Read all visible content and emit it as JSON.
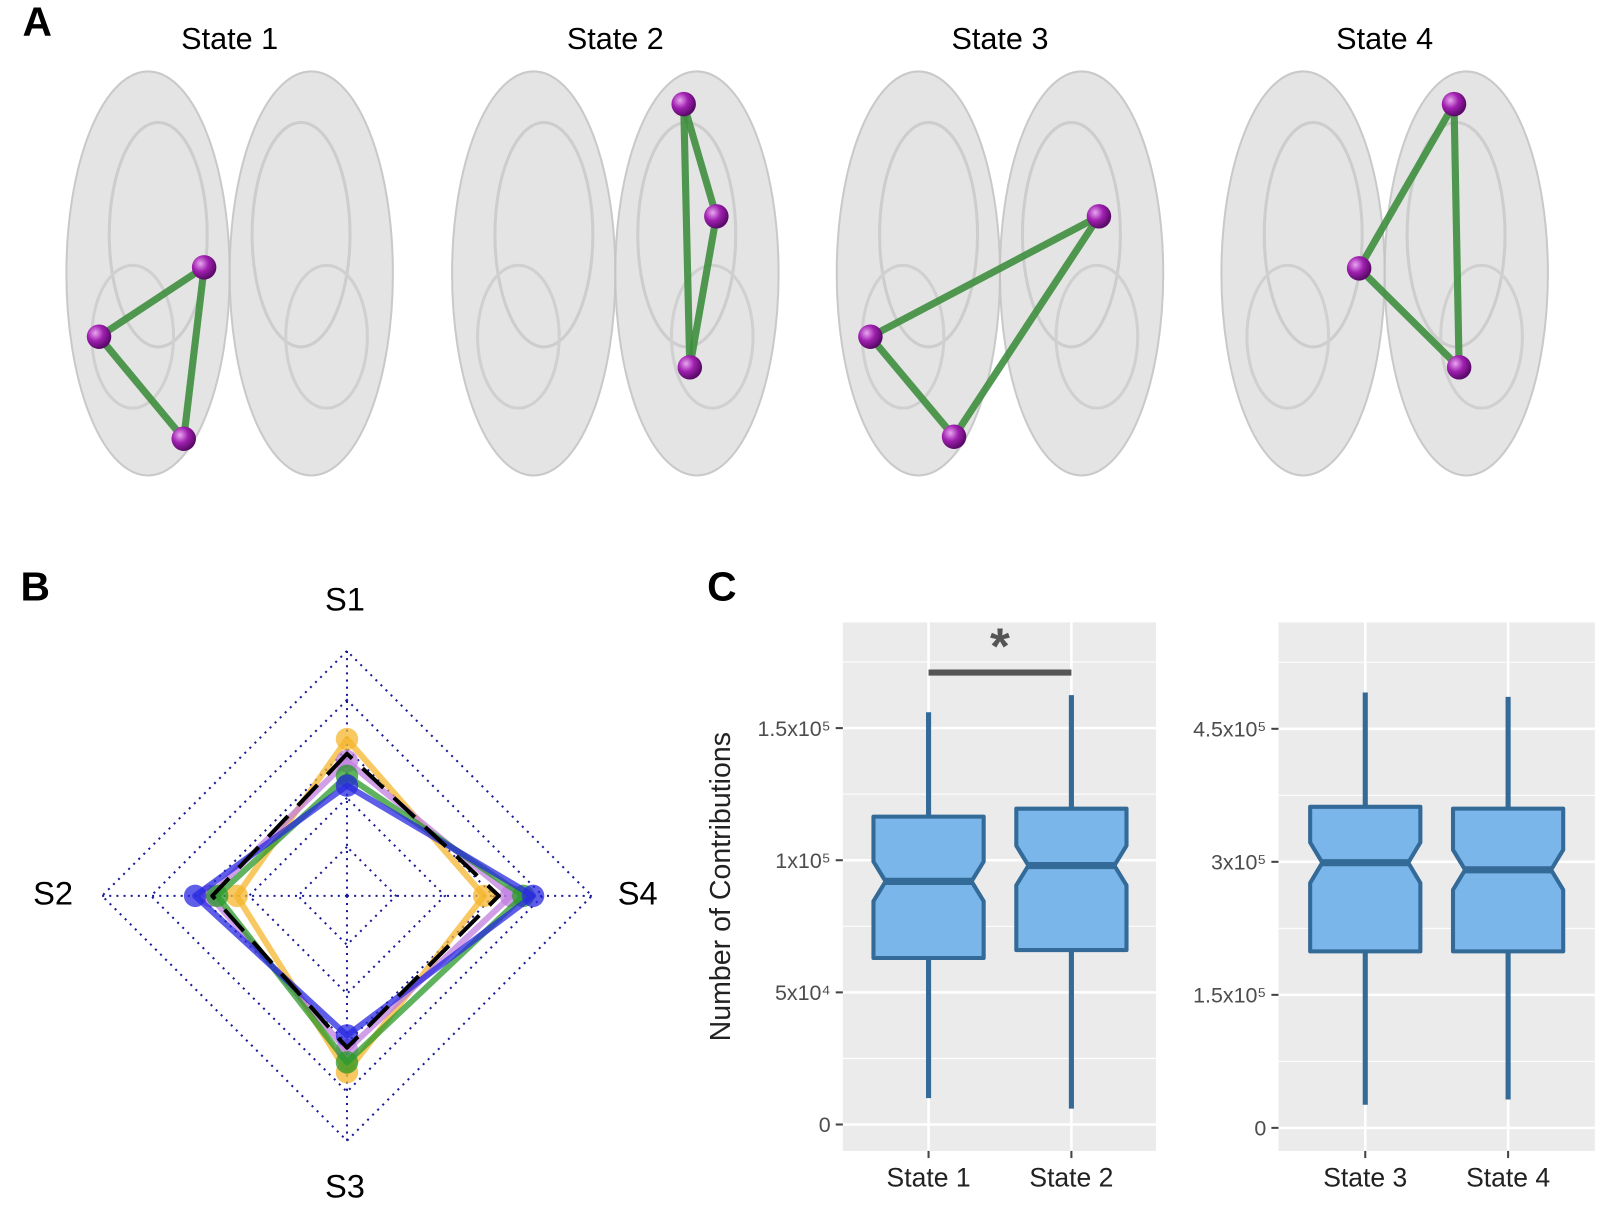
{
  "panel_a": {
    "label": "A",
    "states": [
      "State 1",
      "State 2",
      "State 3",
      "State 4"
    ]
  },
  "chart_data": [
    {
      "type": "radar",
      "label": "B",
      "axes": [
        "S1",
        "S2",
        "S3",
        "S4"
      ],
      "rlim": [
        0,
        1
      ],
      "rticks": [
        0.2,
        0.4,
        0.6,
        0.8,
        1
      ],
      "grid_color": "#1a1a9a",
      "series": [
        {
          "color": "#f5b52e",
          "values": [
            0.64,
            0.45,
            0.72,
            0.56
          ]
        },
        {
          "color": "#c07fe0",
          "values": [
            0.55,
            0.56,
            0.63,
            0.67
          ]
        },
        {
          "color": "#2a9a2a",
          "values": [
            0.49,
            0.53,
            0.68,
            0.72
          ]
        },
        {
          "color": "#2828e0",
          "values": [
            0.45,
            0.62,
            0.57,
            0.76
          ]
        },
        {
          "color": "#000000",
          "dash": true,
          "values": [
            0.58,
            0.55,
            0.62,
            0.62
          ]
        }
      ]
    },
    {
      "type": "box",
      "label": "C",
      "y_label": "Number of Contributions",
      "categories": [
        "State 1",
        "State 2"
      ],
      "boxes": [
        {
          "whislo": 10000,
          "q1": 63000,
          "med": 92000,
          "q3": 116500,
          "whishi": 156000
        },
        {
          "whislo": 6000,
          "q1": 66000,
          "med": 98000,
          "q3": 119500,
          "whishi": 162500
        }
      ],
      "color": "#7ab6ea",
      "edge_color": "#336a98",
      "notch": true,
      "ylim": [
        -10000,
        190000
      ],
      "yticks": [
        0,
        {
          "value": 50000,
          "label": "5x10⁴"
        },
        {
          "value": 100000,
          "label": "1x10⁵"
        },
        {
          "value": 150000,
          "label": "1.5x10⁵"
        }
      ],
      "annotation": {
        "text": "*",
        "value": 171000
      }
    },
    {
      "type": "box",
      "categories": [
        "State 3",
        "State 4"
      ],
      "boxes": [
        {
          "whislo": 26000,
          "q1": 199000,
          "med": 299000,
          "q3": 362000,
          "whishi": 491000
        },
        {
          "whislo": 32000,
          "q1": 199000,
          "med": 291000,
          "q3": 360000,
          "whishi": 486000
        }
      ],
      "color": "#7ab6ea",
      "edge_color": "#336a98",
      "notch": true,
      "ylim": [
        -26000,
        570000
      ],
      "yticks": [
        0,
        {
          "value": 150000,
          "label": "1.5x10⁵"
        },
        {
          "value": 300000,
          "label": "3x10⁵"
        },
        {
          "value": 450000,
          "label": "4.5x10⁵"
        }
      ]
    }
  ]
}
